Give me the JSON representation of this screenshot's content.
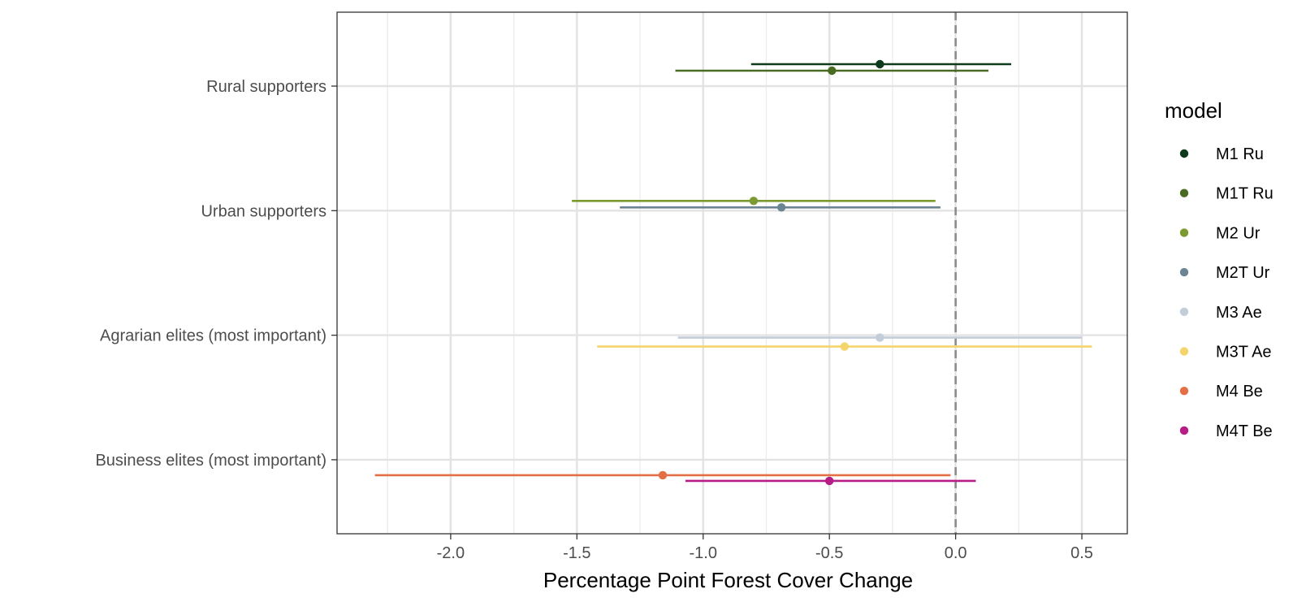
{
  "chart_data": {
    "type": "forest",
    "xlabel": "Percentage Point Forest Cover Change",
    "ylabel": "",
    "xlim": [
      -2.45,
      0.68
    ],
    "x_ticks": [
      -2.0,
      -1.5,
      -1.0,
      -0.5,
      0.0,
      0.5
    ],
    "x_tick_labels": [
      "-2.0",
      "-1.5",
      "-1.0",
      "-0.5",
      "0.0",
      "0.5"
    ],
    "reference_line": 0.0,
    "categories": [
      "Rural supporters",
      "Urban supporters",
      "Agrarian elites (most important)",
      "Business elites (most important)"
    ],
    "legend": {
      "title": "model",
      "position": "right"
    },
    "grid": true,
    "series": [
      {
        "name": "M1 Ru",
        "color": "#0e3b1c",
        "category": "Rural supporters",
        "estimate": -0.3,
        "lower": -0.81,
        "upper": 0.22
      },
      {
        "name": "M1T Ru",
        "color": "#4a6b22",
        "category": "Rural supporters",
        "estimate": -0.49,
        "lower": -1.11,
        "upper": 0.13
      },
      {
        "name": "M2 Ur",
        "color": "#7b9a31",
        "category": "Urban supporters",
        "estimate": -0.8,
        "lower": -1.52,
        "upper": -0.08
      },
      {
        "name": "M2T Ur",
        "color": "#6c8592",
        "category": "Urban supporters",
        "estimate": -0.69,
        "lower": -1.33,
        "upper": -0.06
      },
      {
        "name": "M3 Ae",
        "color": "#c3ccd9",
        "category": "Agrarian elites (most important)",
        "estimate": -0.3,
        "lower": -1.1,
        "upper": 0.5
      },
      {
        "name": "M3T Ae",
        "color": "#f4d46b",
        "category": "Agrarian elites (most important)",
        "estimate": -0.44,
        "lower": -1.42,
        "upper": 0.54
      },
      {
        "name": "M4 Be",
        "color": "#e56f45",
        "category": "Business elites (most important)",
        "estimate": -1.16,
        "lower": -2.3,
        "upper": -0.02
      },
      {
        "name": "M4T Be",
        "color": "#b71c87",
        "category": "Business elites (most important)",
        "estimate": -0.5,
        "lower": -1.07,
        "upper": 0.08
      }
    ]
  }
}
